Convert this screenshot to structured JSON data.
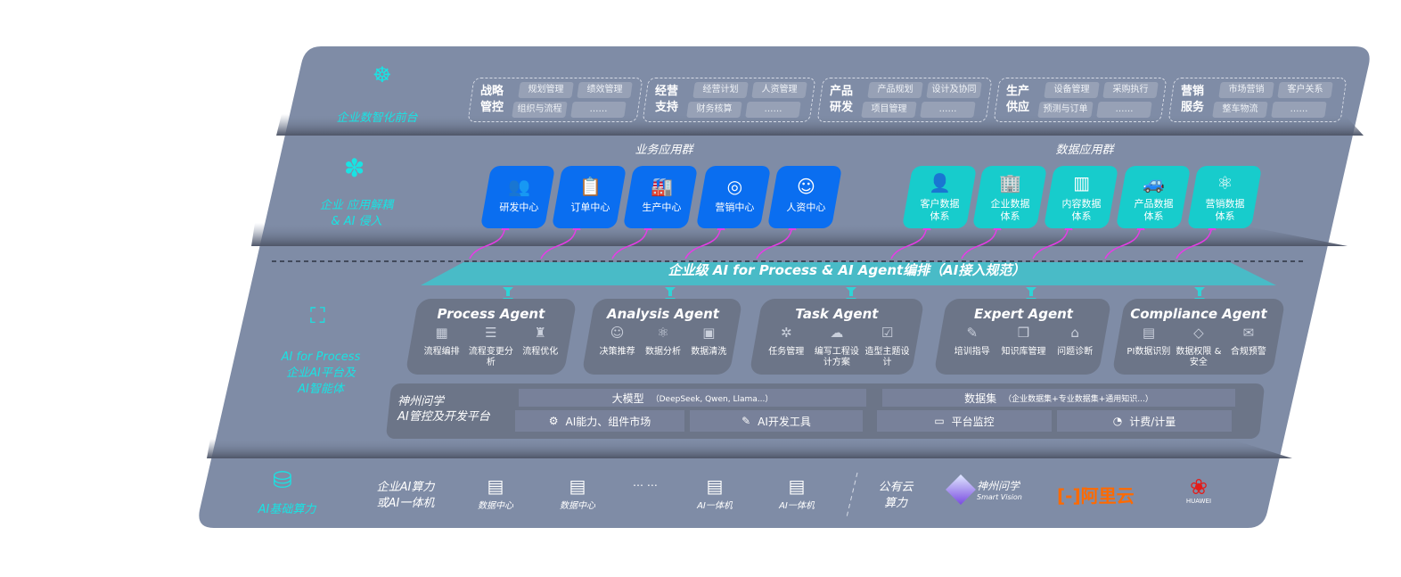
{
  "front": {
    "label": "企业数智化前台",
    "icon": "brain-icon",
    "groups": [
      {
        "title": [
          "战略",
          "管控"
        ],
        "items": [
          "规划管理",
          "绩效管理",
          "组织与流程",
          "……"
        ]
      },
      {
        "title": [
          "经营",
          "支持"
        ],
        "items": [
          "经营计划",
          "人资管理",
          "财务核算",
          "……"
        ]
      },
      {
        "title": [
          "产品",
          "研发"
        ],
        "items": [
          "产品规划",
          "设计及协同",
          "项目管理",
          "……"
        ]
      },
      {
        "title": [
          "生产",
          "供应"
        ],
        "items": [
          "设备管理",
          "采购执行",
          "预测与订单",
          "……"
        ]
      },
      {
        "title": [
          "营销",
          "服务"
        ],
        "items": [
          "市场营销",
          "客户关系",
          "整车物流",
          "……"
        ]
      }
    ]
  },
  "apps": {
    "label": [
      "企业 应用解耦",
      "& AI 侵入"
    ],
    "icon": "molecule-icon",
    "business_title": "业务应用群",
    "business": [
      {
        "label": "研发中心",
        "icon": "users-icon"
      },
      {
        "label": "订单中心",
        "icon": "clipboard-icon"
      },
      {
        "label": "生产中心",
        "icon": "factory-icon"
      },
      {
        "label": "营销中心",
        "icon": "target-icon"
      },
      {
        "label": "人资中心",
        "icon": "person-icon"
      }
    ],
    "data_title": "数据应用群",
    "data": [
      {
        "label": [
          "客户数据",
          "体系"
        ],
        "icon": "user-icon"
      },
      {
        "label": [
          "企业数据",
          "体系"
        ],
        "icon": "building-icon"
      },
      {
        "label": [
          "内容数据",
          "体系"
        ],
        "icon": "books-icon"
      },
      {
        "label": [
          "产品数据",
          "体系"
        ],
        "icon": "car-icon"
      },
      {
        "label": [
          "营销数据",
          "体系"
        ],
        "icon": "atom-icon"
      }
    ]
  },
  "ai": {
    "label": [
      "AI for Process",
      "企业AI平台及",
      "AI智能体"
    ],
    "icon": "face-scan-icon",
    "banner": "企业级 AI for Process & AI Agent编排（AI接入规范）",
    "agents": [
      {
        "title": "Process Agent",
        "items": [
          "流程编排",
          "流程变更分析",
          "流程优化"
        ]
      },
      {
        "title": "Analysis Agent",
        "items": [
          "决策推荐",
          "数据分析",
          "数据清洗"
        ]
      },
      {
        "title": "Task Agent",
        "items": [
          "任务管理",
          "编写工程设计方案",
          "造型主题设计"
        ]
      },
      {
        "title": "Expert Agent",
        "items": [
          "培训指导",
          "知识库管理",
          "问题诊断"
        ]
      },
      {
        "title": "Compliance Agent",
        "items": [
          "PI数据识别",
          "数据权限 & 安全",
          "合规预警"
        ]
      }
    ],
    "platform": {
      "label": [
        "神州问学",
        "AI管控及开发平台"
      ],
      "model": "大模型",
      "model_note": "（DeepSeek, Qwen, Llama...）",
      "dataset": "数据集",
      "dataset_note": "（企业数据集+专业数据集+通用知识...）",
      "tools": [
        "AI能力、组件市场",
        "AI开发工具",
        "平台监控",
        "计费/计量"
      ]
    }
  },
  "infra": {
    "label": "AI基础算力",
    "icon": "database-icon",
    "onprem_label": [
      "企业AI算力",
      "或AI一体机"
    ],
    "servers": [
      "数据中心",
      "数据中心",
      "AI一体机",
      "AI一体机"
    ],
    "ellipsis": "… …",
    "cloud_label": [
      "公有云",
      "算力"
    ],
    "logos": {
      "sv": "神州问学",
      "sv_en": "Smart Vision",
      "aliyun": "阿里云",
      "huawei": "HUAWEI"
    }
  },
  "colors": {
    "panel": "#7f8ca6",
    "cyan": "#19e3e3",
    "blue": "#0a6ef0",
    "teal": "#17cccc",
    "arrow": "#e53de5",
    "aliyun": "#ff6a00",
    "huawei": "#e31d1a"
  }
}
